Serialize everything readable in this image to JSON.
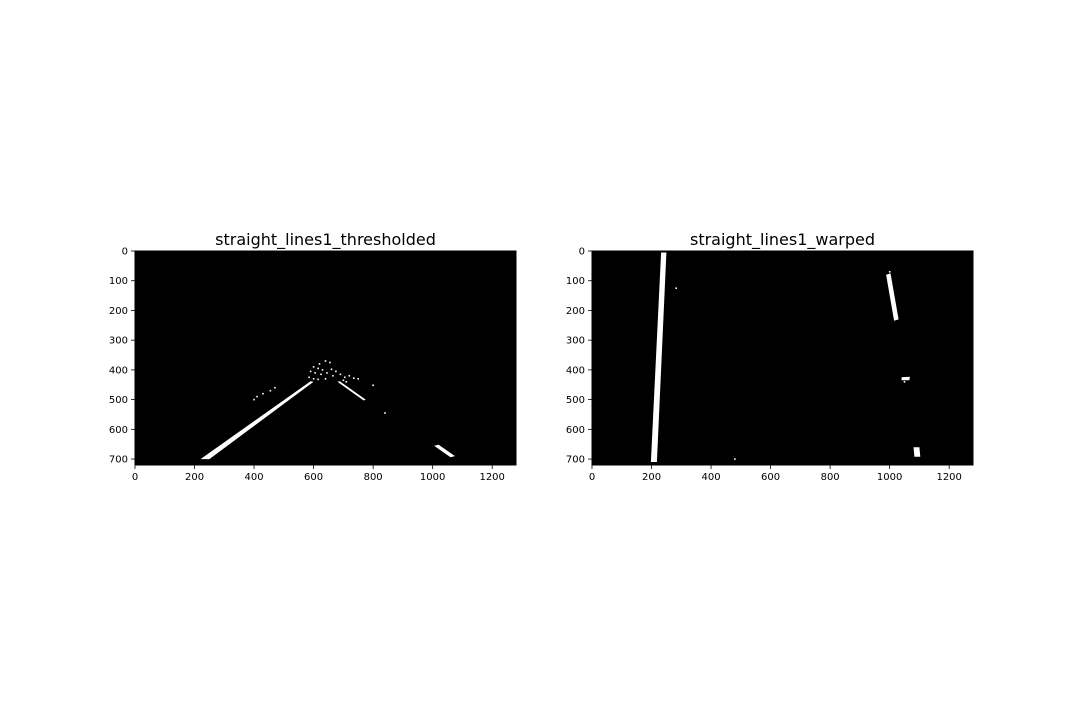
{
  "chart_data": [
    {
      "type": "image",
      "title": "straight_lines1_thresholded",
      "xlim": [
        0,
        1280
      ],
      "ylim": [
        720,
        0
      ],
      "x_ticks": [
        0,
        200,
        400,
        600,
        800,
        1000,
        1200
      ],
      "y_ticks": [
        0,
        100,
        200,
        300,
        400,
        500,
        600,
        700
      ],
      "background_color": "#000000",
      "foreground_color": "#ffffff",
      "features": {
        "polygons": [
          [
            [
              220,
              700
            ],
            [
              250,
              700
            ],
            [
              600,
              440
            ],
            [
              590,
              438
            ]
          ],
          [
            [
              1005,
              655
            ],
            [
              1020,
              652
            ],
            [
              1075,
              690
            ],
            [
              1060,
              694
            ]
          ],
          [
            [
              680,
              440
            ],
            [
              688,
              438
            ],
            [
              775,
              500
            ],
            [
              768,
              503
            ]
          ]
        ],
        "dots": [
          [
            620,
            380
          ],
          [
            640,
            370
          ],
          [
            655,
            375
          ],
          [
            600,
            390
          ],
          [
            615,
            395
          ],
          [
            630,
            400
          ],
          [
            660,
            398
          ],
          [
            675,
            405
          ],
          [
            590,
            405
          ],
          [
            605,
            410
          ],
          [
            625,
            415
          ],
          [
            645,
            410
          ],
          [
            665,
            420
          ],
          [
            690,
            415
          ],
          [
            705,
            425
          ],
          [
            720,
            420
          ],
          [
            735,
            428
          ],
          [
            750,
            430
          ],
          [
            585,
            425
          ],
          [
            600,
            430
          ],
          [
            615,
            432
          ],
          [
            640,
            430
          ],
          [
            700,
            435
          ],
          [
            710,
            440
          ],
          [
            800,
            452
          ],
          [
            840,
            545
          ],
          [
            470,
            460
          ],
          [
            455,
            470
          ],
          [
            430,
            480
          ],
          [
            410,
            490
          ],
          [
            400,
            500
          ]
        ]
      }
    },
    {
      "type": "image",
      "title": "straight_lines1_warped",
      "xlim": [
        0,
        1280
      ],
      "ylim": [
        720,
        0
      ],
      "x_ticks": [
        0,
        200,
        400,
        600,
        800,
        1000,
        1200
      ],
      "y_ticks": [
        0,
        100,
        200,
        300,
        400,
        500,
        600,
        700
      ],
      "background_color": "#000000",
      "foreground_color": "#ffffff",
      "features": {
        "polygons": [
          [
            [
              232,
              5
            ],
            [
              250,
              5
            ],
            [
              218,
              710
            ],
            [
              198,
              710
            ]
          ],
          [
            [
              988,
              80
            ],
            [
              1003,
              75
            ],
            [
              1030,
              230
            ],
            [
              1015,
              235
            ]
          ],
          [
            [
              1080,
              660
            ],
            [
              1100,
              660
            ],
            [
              1103,
              692
            ],
            [
              1083,
              692
            ]
          ],
          [
            [
              1040,
              425
            ],
            [
              1068,
              423
            ],
            [
              1066,
              435
            ],
            [
              1040,
              435
            ]
          ]
        ],
        "dots": [
          [
            283,
            125
          ],
          [
            480,
            700
          ],
          [
            1000,
            70
          ],
          [
            1050,
            440
          ]
        ]
      }
    }
  ]
}
